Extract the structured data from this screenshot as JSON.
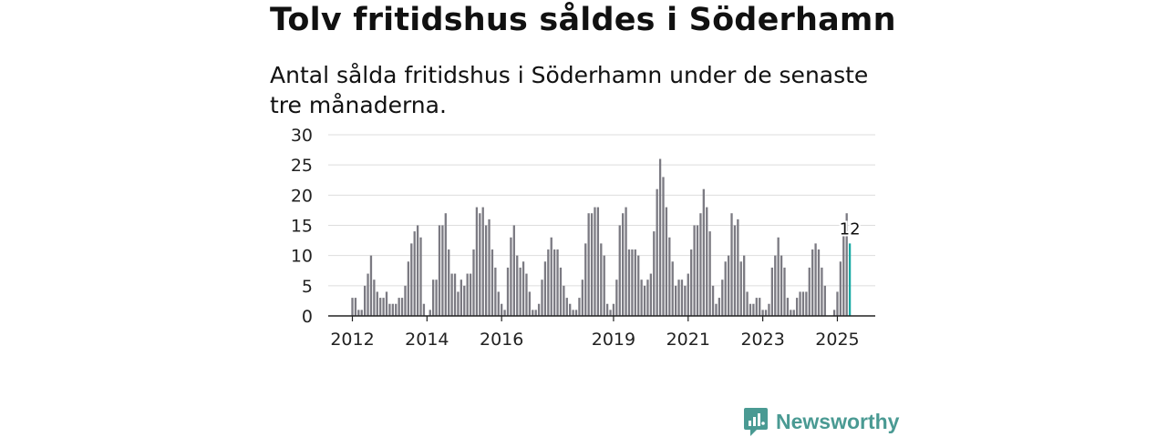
{
  "title": "Tolv fritidshus såldes i Söderhamn",
  "subtitle": "Antal sålda fritidshus i Söderhamn under de senaste tre månaderna.",
  "brand": "Newsworthy",
  "colors": {
    "bar": "#7b7a82",
    "highlight": "#1aaba5",
    "grid": "#dddddd",
    "axis": "#222222",
    "brand": "#4a9a93"
  },
  "chart_data": {
    "type": "bar",
    "ylim": [
      0,
      30
    ],
    "y_ticks": [
      0,
      5,
      10,
      15,
      20,
      25,
      30
    ],
    "x_tick_labels": [
      {
        "label": "2012",
        "index": 0
      },
      {
        "label": "2014",
        "index": 24
      },
      {
        "label": "2016",
        "index": 48
      },
      {
        "label": "2019",
        "index": 84
      },
      {
        "label": "2021",
        "index": 108
      },
      {
        "label": "2023",
        "index": 132
      },
      {
        "label": "2025",
        "index": 156
      }
    ],
    "values": [
      3,
      3,
      1,
      1,
      5,
      7,
      10,
      6,
      4,
      3,
      3,
      4,
      2,
      2,
      2,
      3,
      3,
      5,
      9,
      12,
      14,
      15,
      13,
      2,
      0,
      1,
      6,
      6,
      15,
      15,
      17,
      11,
      7,
      7,
      4,
      6,
      5,
      7,
      7,
      11,
      18,
      17,
      18,
      15,
      16,
      11,
      8,
      4,
      2,
      1,
      8,
      13,
      15,
      10,
      8,
      9,
      7,
      4,
      1,
      1,
      2,
      6,
      9,
      11,
      13,
      11,
      11,
      8,
      5,
      3,
      2,
      1,
      1,
      3,
      6,
      12,
      17,
      17,
      18,
      18,
      12,
      10,
      2,
      1,
      2,
      6,
      15,
      17,
      18,
      11,
      11,
      11,
      10,
      6,
      5,
      6,
      7,
      14,
      21,
      26,
      23,
      18,
      13,
      9,
      5,
      6,
      6,
      5,
      7,
      11,
      15,
      15,
      17,
      21,
      18,
      14,
      5,
      2,
      3,
      6,
      9,
      10,
      17,
      15,
      16,
      9,
      10,
      4,
      2,
      2,
      3,
      3,
      1,
      1,
      2,
      8,
      10,
      13,
      10,
      8,
      3,
      1,
      1,
      3,
      4,
      4,
      4,
      8,
      11,
      12,
      11,
      8,
      5,
      0,
      0,
      1,
      4,
      9,
      15,
      17,
      12
    ],
    "highlight": {
      "index": 160,
      "label": "12"
    }
  }
}
